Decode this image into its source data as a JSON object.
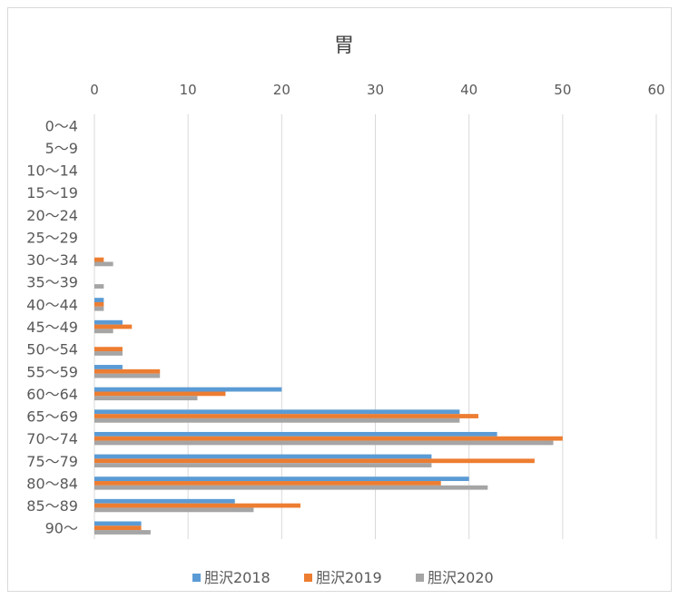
{
  "chart_data": {
    "type": "bar",
    "orientation": "horizontal",
    "title": "胃",
    "xlim": [
      0,
      60
    ],
    "x_ticks": [
      0,
      10,
      20,
      30,
      40,
      50,
      60
    ],
    "grid": true,
    "legend_position": "bottom",
    "categories": [
      "0～4",
      "5～9",
      "10～14",
      "15～19",
      "20～24",
      "25～29",
      "30～34",
      "35～39",
      "40～44",
      "45～49",
      "50～54",
      "55～59",
      "60～64",
      "65～69",
      "70～74",
      "75～79",
      "80～84",
      "85～89",
      "90～"
    ],
    "series": [
      {
        "name": "胆沢2018",
        "color": "#5B9BD5",
        "values": [
          0,
          0,
          0,
          0,
          0,
          0,
          0,
          0,
          1,
          3,
          0,
          3,
          20,
          39,
          43,
          36,
          40,
          15,
          5
        ]
      },
      {
        "name": "胆沢2019",
        "color": "#ED7D31",
        "values": [
          0,
          0,
          0,
          0,
          0,
          0,
          1,
          0,
          1,
          4,
          3,
          7,
          14,
          41,
          50,
          47,
          37,
          22,
          5
        ]
      },
      {
        "name": "胆沢2020",
        "color": "#A5A5A5",
        "values": [
          0,
          0,
          0,
          0,
          0,
          0,
          2,
          1,
          1,
          2,
          3,
          7,
          11,
          39,
          49,
          36,
          42,
          17,
          6
        ]
      }
    ]
  }
}
